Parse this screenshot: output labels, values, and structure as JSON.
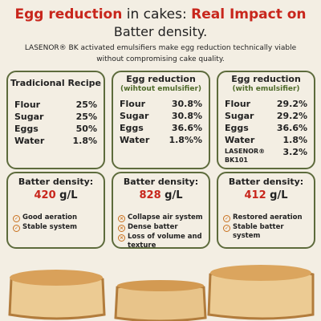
{
  "header": {
    "title_part1": "Egg reduction",
    "title_part2": " in cakes: ",
    "title_part3": "Real Impact on",
    "title_part4": "Batter density.",
    "subtitle": "LASENOR® BK activated emulsifiers make egg reduction technically viable without compromising cake quality."
  },
  "cards": [
    {
      "title": "Tradicional Recipe",
      "rows": [
        [
          "Flour",
          "25%"
        ],
        [
          "Sugar",
          "25%"
        ],
        [
          "Eggs",
          "50%"
        ],
        [
          "Water",
          "1.8%"
        ]
      ],
      "density_label": "Batter density:",
      "density_value": "420",
      "density_unit": "g/L",
      "notes": [
        "Good aeration",
        "Stable system"
      ]
    },
    {
      "title": "Egg reduction",
      "subtitle": "(wihtout emulsifier)",
      "rows": [
        [
          "Flour",
          "30.8%"
        ],
        [
          "Sugar",
          "30.8%"
        ],
        [
          "Eggs",
          "36.6%"
        ],
        [
          "Water",
          "1.8%%"
        ]
      ],
      "density_label": "Batter density:",
      "density_value": "828",
      "density_unit": "g/L",
      "notes": [
        "Collapse air system",
        "Dense batter",
        "Loss of volume and texture"
      ]
    },
    {
      "title": "Egg reduction",
      "subtitle": "(with emulsifier)",
      "rows": [
        [
          "Flour",
          "29.2%"
        ],
        [
          "Sugar",
          "29.2%"
        ],
        [
          "Eggs",
          "36.6%"
        ],
        [
          "Water",
          "1.8%"
        ],
        [
          "LASENOR® BK101",
          "3.2%"
        ]
      ],
      "density_label": "Batter density:",
      "density_value": "412",
      "density_unit": "g/L",
      "notes": [
        "Restored aeration",
        "Stable batter system"
      ]
    }
  ]
}
